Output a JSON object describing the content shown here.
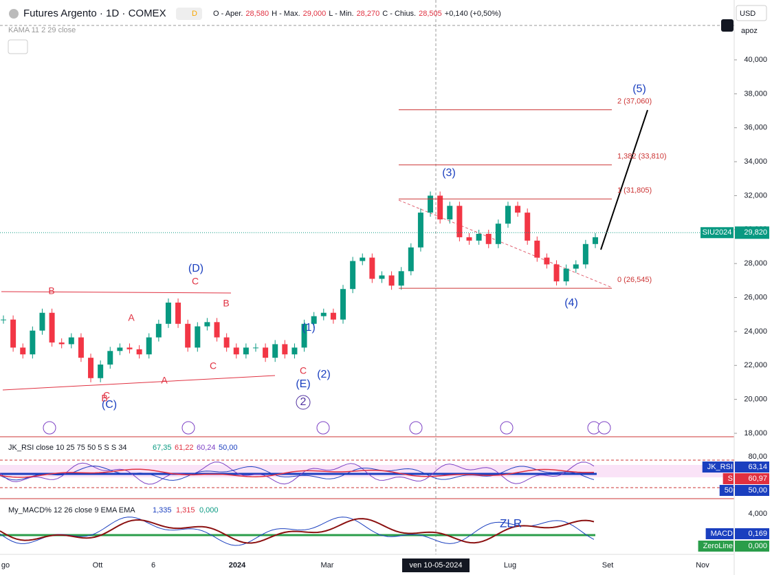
{
  "header": {
    "symbol": "Futures Argento · 1D · COMEX",
    "flag": "D",
    "ohlc": [
      "O - Aper.",
      "28,580",
      "H - Max.",
      "29,000",
      "L - Min.",
      "28,270",
      "C - Chius.",
      "28,505",
      "+0,140 (+0,50%)"
    ],
    "indicator": "KAMA 11 2 29 close"
  },
  "toolbar": {
    "currency": "USD",
    "scale": "apoz"
  },
  "price_axis": {
    "ylim": [
      17800,
      42500
    ],
    "ticks": [
      {
        "value": 18000,
        "label": "18,000"
      },
      {
        "value": 20000,
        "label": "20,000"
      },
      {
        "value": 22000,
        "label": "22,000"
      },
      {
        "value": 24000,
        "label": "24,000"
      },
      {
        "value": 26000,
        "label": "26,000"
      },
      {
        "value": 28000,
        "label": "28,000"
      },
      {
        "value": 30000,
        "label": "30,000"
      },
      {
        "value": 32000,
        "label": "32,000"
      },
      {
        "value": 34000,
        "label": "34,000"
      },
      {
        "value": 36000,
        "label": "36,000"
      },
      {
        "value": 38000,
        "label": "38,000"
      },
      {
        "value": 40000,
        "label": "40,000"
      }
    ]
  },
  "price": {
    "closes": [
      24700,
      23050,
      22650,
      24050,
      25100,
      23350,
      23250,
      23650,
      22450,
      21250,
      22050,
      22850,
      23050,
      22950,
      22650,
      23650,
      24450,
      25700,
      24450,
      23050,
      24300,
      24550,
      23650,
      23050,
      22650,
      23050,
      23050,
      22450,
      23250,
      22650,
      23050,
      24450,
      24900,
      25100,
      24700,
      26500,
      28150,
      28350,
      27100,
      27300,
      26700,
      27550,
      28950,
      31000,
      32000,
      30600,
      31400,
      29550,
      29350,
      29750,
      29150,
      30350,
      31400,
      31000,
      29350,
      28350,
      27950,
      26950,
      27700,
      27950,
      29150,
      29550
    ]
  },
  "last_price": {
    "symbol": "SIU2024",
    "value": 29820,
    "label": "29,820"
  },
  "fib_levels": [
    {
      "value": 37060,
      "label": "2 (37,060)"
    },
    {
      "value": 33810,
      "label": "1,382 (33,810)"
    },
    {
      "value": 31805,
      "label": "1 (31,805)"
    },
    {
      "value": 26545,
      "label": "0 (26,545)"
    }
  ],
  "wave_labels": [
    "B",
    "A",
    "C",
    "(D)",
    "C",
    "B",
    "A",
    "C",
    "(C)",
    "B",
    "(1)",
    "C",
    "(E)",
    "2",
    "(2)",
    "(3)",
    "(4)",
    "(5)"
  ],
  "rsi": {
    "title": "JK_RSI close 10 25 75 50 5 S S 34",
    "values": [
      "67,35",
      "61,22",
      "60,24",
      "50,00"
    ],
    "axis": "80,00",
    "tags": [
      [
        "JK_RSI",
        "63,14"
      ],
      [
        "S",
        "60,97"
      ],
      [
        "50",
        "50,00"
      ]
    ]
  },
  "macd": {
    "title": "My_MACD% 12 26 close 9 EMA EMA",
    "values": [
      "1,335",
      "1,315",
      "0,000"
    ],
    "axis": "4,000",
    "annotation": "ZLR",
    "tags": [
      [
        "MACD",
        "0,169"
      ],
      [
        "ZeroLine",
        "0,000"
      ]
    ]
  },
  "time_axis": [
    "go",
    "Ott",
    "6",
    "2024",
    "Mar",
    "ven 10-05-2024",
    "Lug",
    "Set",
    "Nov"
  ]
}
